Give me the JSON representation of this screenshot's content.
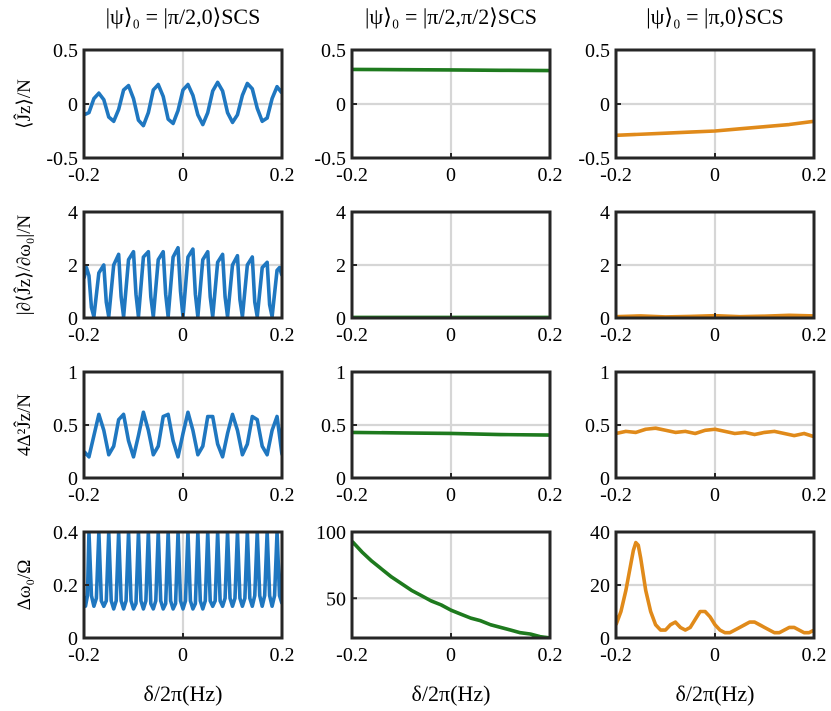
{
  "column_titles": [
    "|ψ⟩₀ = |π/2,0⟩SCS",
    "|ψ⟩₀ = |π/2,π/2⟩SCS",
    "|ψ⟩₀ = |π,0⟩SCS"
  ],
  "row_ylabels": [
    "⟨Ĵz⟩/N",
    "|∂⟨Ĵz⟩/∂ω₀|/N",
    "4Δ²Ĵz/N",
    "Δω₀/Ω"
  ],
  "xlabel": "δ/2π(Hz)",
  "colors": {
    "col0": "#1f77c0",
    "col1": "#1e7a1e",
    "col2": "#e08a1a",
    "grid": "#d6d6d6",
    "axis": "#262626"
  },
  "chart_data": [
    {
      "type": "line",
      "row": 0,
      "col": 0,
      "title": "|ψ⟩₀ = |π/2,0⟩SCS",
      "ylabel": "⟨Ĵz⟩/N",
      "xlim": [
        -0.2,
        0.2
      ],
      "ylim": [
        -0.5,
        0.5
      ],
      "xticks": [
        -0.2,
        0,
        0.2
      ],
      "xtick_labels": [
        "-0.2",
        "0",
        "0.2"
      ],
      "yticks": [
        -0.5,
        0,
        0.5
      ],
      "ytick_labels": [
        "-0.5",
        "0",
        "0.5"
      ],
      "series": [
        {
          "name": "col0",
          "x": [
            -0.2,
            -0.19,
            -0.18,
            -0.17,
            -0.16,
            -0.15,
            -0.14,
            -0.13,
            -0.12,
            -0.11,
            -0.1,
            -0.09,
            -0.08,
            -0.07,
            -0.06,
            -0.05,
            -0.04,
            -0.03,
            -0.02,
            -0.01,
            0,
            0.01,
            0.02,
            0.03,
            0.04,
            0.05,
            0.06,
            0.07,
            0.08,
            0.09,
            0.1,
            0.11,
            0.12,
            0.13,
            0.14,
            0.15,
            0.16,
            0.17,
            0.18,
            0.19,
            0.2
          ],
          "y": [
            -0.1,
            -0.08,
            0.05,
            0.1,
            0.04,
            -0.12,
            -0.16,
            -0.05,
            0.13,
            0.17,
            0.05,
            -0.15,
            -0.2,
            -0.08,
            0.13,
            0.18,
            0.07,
            -0.14,
            -0.18,
            -0.06,
            0.13,
            0.18,
            0.08,
            -0.1,
            -0.19,
            -0.08,
            0.12,
            0.2,
            0.12,
            -0.08,
            -0.17,
            -0.1,
            0.08,
            0.19,
            0.14,
            -0.04,
            -0.16,
            -0.13,
            0.05,
            0.16,
            0.1
          ]
        }
      ]
    },
    {
      "type": "line",
      "row": 0,
      "col": 1,
      "title": "|ψ⟩₀ = |π/2,π/2⟩SCS",
      "ylabel": "",
      "xlim": [
        -0.2,
        0.2
      ],
      "ylim": [
        -0.5,
        0.5
      ],
      "xticks": [
        -0.2,
        0,
        0.2
      ],
      "xtick_labels": [
        "-0.2",
        "0",
        "0.2"
      ],
      "yticks": [
        -0.5,
        0,
        0.5
      ],
      "ytick_labels": [
        "-0.5",
        "0",
        "0.5"
      ],
      "series": [
        {
          "name": "col1",
          "x": [
            -0.2,
            -0.1,
            0,
            0.1,
            0.2
          ],
          "y": [
            0.32,
            0.318,
            0.315,
            0.312,
            0.31
          ]
        }
      ]
    },
    {
      "type": "line",
      "row": 0,
      "col": 2,
      "title": "|ψ⟩₀ = |π,0⟩SCS",
      "ylabel": "",
      "xlim": [
        -0.2,
        0.2
      ],
      "ylim": [
        -0.5,
        0.5
      ],
      "xticks": [
        -0.2,
        0,
        0.2
      ],
      "xtick_labels": [
        "-0.2",
        "0",
        "0.2"
      ],
      "yticks": [
        -0.5,
        0,
        0.5
      ],
      "ytick_labels": [
        "-0.5",
        "0",
        "0.5"
      ],
      "series": [
        {
          "name": "col2",
          "x": [
            -0.2,
            -0.15,
            -0.1,
            -0.05,
            0,
            0.05,
            0.1,
            0.15,
            0.2
          ],
          "y": [
            -0.29,
            -0.28,
            -0.27,
            -0.26,
            -0.25,
            -0.23,
            -0.21,
            -0.19,
            -0.16
          ]
        }
      ]
    },
    {
      "type": "line",
      "row": 1,
      "col": 0,
      "title": "",
      "ylabel": "|∂⟨Ĵz⟩/∂ω₀|/N",
      "xlim": [
        -0.2,
        0.2
      ],
      "ylim": [
        0,
        4
      ],
      "xticks": [
        -0.2,
        0,
        0.2
      ],
      "xtick_labels": [
        "-0.2",
        "0",
        "0.2"
      ],
      "yticks": [
        0,
        2,
        4
      ],
      "ytick_labels": [
        "0",
        "2",
        "4"
      ],
      "series": [
        {
          "name": "col0",
          "x": [
            -0.2,
            -0.195,
            -0.19,
            -0.185,
            -0.18,
            -0.17,
            -0.16,
            -0.155,
            -0.15,
            -0.14,
            -0.13,
            -0.125,
            -0.12,
            -0.11,
            -0.1,
            -0.095,
            -0.09,
            -0.08,
            -0.07,
            -0.065,
            -0.06,
            -0.05,
            -0.04,
            -0.035,
            -0.03,
            -0.02,
            -0.01,
            -0.005,
            0,
            0.01,
            0.02,
            0.025,
            0.03,
            0.04,
            0.05,
            0.055,
            0.06,
            0.07,
            0.08,
            0.085,
            0.09,
            0.1,
            0.11,
            0.115,
            0.12,
            0.13,
            0.14,
            0.145,
            0.15,
            0.16,
            0.17,
            0.175,
            0.18,
            0.19,
            0.195,
            0.2
          ],
          "y": [
            1.5,
            1.9,
            1.6,
            0.4,
            0.05,
            1.7,
            2.0,
            0.6,
            0.05,
            2.0,
            2.4,
            0.8,
            0.05,
            2.2,
            2.5,
            0.9,
            0.05,
            2.3,
            2.5,
            0.8,
            0.05,
            2.2,
            2.5,
            0.9,
            0.05,
            2.3,
            2.65,
            1.0,
            0.05,
            2.3,
            2.6,
            0.9,
            0.05,
            2.2,
            2.5,
            0.8,
            0.05,
            2.1,
            2.4,
            0.8,
            0.05,
            2.0,
            2.35,
            0.7,
            0.05,
            2.0,
            2.3,
            0.6,
            0.05,
            1.9,
            2.1,
            0.5,
            0.05,
            1.8,
            1.9,
            1.6
          ]
        }
      ]
    },
    {
      "type": "line",
      "row": 1,
      "col": 1,
      "title": "",
      "ylabel": "",
      "xlim": [
        -0.2,
        0.2
      ],
      "ylim": [
        0,
        4
      ],
      "xticks": [
        -0.2,
        0,
        0.2
      ],
      "xtick_labels": [
        "-0.2",
        "0",
        "0.2"
      ],
      "yticks": [
        0,
        2,
        4
      ],
      "ytick_labels": [
        "0",
        "2",
        "4"
      ],
      "series": [
        {
          "name": "col1",
          "x": [
            -0.2,
            0,
            0.2
          ],
          "y": [
            0.02,
            0.02,
            0.02
          ]
        }
      ]
    },
    {
      "type": "line",
      "row": 1,
      "col": 2,
      "title": "",
      "ylabel": "",
      "xlim": [
        -0.2,
        0.2
      ],
      "ylim": [
        0,
        4
      ],
      "xticks": [
        -0.2,
        0,
        0.2
      ],
      "xtick_labels": [
        "-0.2",
        "0",
        "0.2"
      ],
      "yticks": [
        0,
        2,
        4
      ],
      "ytick_labels": [
        "0",
        "2",
        "4"
      ],
      "series": [
        {
          "name": "col2",
          "x": [
            -0.2,
            -0.15,
            -0.1,
            -0.05,
            0,
            0.05,
            0.1,
            0.15,
            0.2
          ],
          "y": [
            0.05,
            0.08,
            0.04,
            0.06,
            0.09,
            0.05,
            0.07,
            0.1,
            0.08
          ]
        }
      ]
    },
    {
      "type": "line",
      "row": 2,
      "col": 0,
      "title": "",
      "ylabel": "4Δ²Ĵz/N",
      "xlim": [
        -0.2,
        0.2
      ],
      "ylim": [
        0,
        1
      ],
      "xticks": [
        -0.2,
        0,
        0.2
      ],
      "xtick_labels": [
        "-0.2",
        "0",
        "0.2"
      ],
      "yticks": [
        0,
        0.5,
        1
      ],
      "ytick_labels": [
        "0",
        "0.5",
        "1"
      ],
      "series": [
        {
          "name": "col0",
          "x": [
            -0.2,
            -0.19,
            -0.18,
            -0.17,
            -0.16,
            -0.15,
            -0.14,
            -0.13,
            -0.12,
            -0.11,
            -0.1,
            -0.09,
            -0.08,
            -0.07,
            -0.06,
            -0.05,
            -0.04,
            -0.03,
            -0.02,
            -0.01,
            0,
            0.01,
            0.02,
            0.03,
            0.04,
            0.05,
            0.06,
            0.07,
            0.08,
            0.09,
            0.1,
            0.11,
            0.12,
            0.13,
            0.14,
            0.15,
            0.16,
            0.17,
            0.18,
            0.19,
            0.2
          ],
          "y": [
            0.25,
            0.2,
            0.4,
            0.6,
            0.45,
            0.22,
            0.3,
            0.55,
            0.6,
            0.35,
            0.2,
            0.4,
            0.62,
            0.45,
            0.22,
            0.3,
            0.58,
            0.6,
            0.35,
            0.2,
            0.42,
            0.62,
            0.45,
            0.22,
            0.3,
            0.58,
            0.58,
            0.32,
            0.2,
            0.42,
            0.6,
            0.45,
            0.22,
            0.32,
            0.58,
            0.55,
            0.3,
            0.22,
            0.45,
            0.58,
            0.22
          ]
        }
      ]
    },
    {
      "type": "line",
      "row": 2,
      "col": 1,
      "title": "",
      "ylabel": "",
      "xlim": [
        -0.2,
        0.2
      ],
      "ylim": [
        0,
        1
      ],
      "xticks": [
        -0.2,
        0,
        0.2
      ],
      "xtick_labels": [
        "-0.2",
        "0",
        "0.2"
      ],
      "yticks": [
        0,
        0.5,
        1
      ],
      "ytick_labels": [
        "0",
        "0.5",
        "1"
      ],
      "series": [
        {
          "name": "col1",
          "x": [
            -0.2,
            -0.1,
            0,
            0.1,
            0.2
          ],
          "y": [
            0.43,
            0.425,
            0.42,
            0.41,
            0.405
          ]
        }
      ]
    },
    {
      "type": "line",
      "row": 2,
      "col": 2,
      "title": "",
      "ylabel": "",
      "xlim": [
        -0.2,
        0.2
      ],
      "ylim": [
        0,
        1
      ],
      "xticks": [
        -0.2,
        0,
        0.2
      ],
      "xtick_labels": [
        "-0.2",
        "0",
        "0.2"
      ],
      "yticks": [
        0,
        0.5,
        1
      ],
      "ytick_labels": [
        "0",
        "0.5",
        "1"
      ],
      "series": [
        {
          "name": "col2",
          "x": [
            -0.2,
            -0.18,
            -0.16,
            -0.14,
            -0.12,
            -0.1,
            -0.08,
            -0.06,
            -0.04,
            -0.02,
            0,
            0.02,
            0.04,
            0.06,
            0.08,
            0.1,
            0.12,
            0.14,
            0.16,
            0.18,
            0.2
          ],
          "y": [
            0.42,
            0.44,
            0.43,
            0.46,
            0.47,
            0.45,
            0.43,
            0.44,
            0.42,
            0.45,
            0.46,
            0.44,
            0.42,
            0.43,
            0.41,
            0.43,
            0.44,
            0.42,
            0.4,
            0.42,
            0.39
          ]
        }
      ]
    },
    {
      "type": "line",
      "row": 3,
      "col": 0,
      "title": "",
      "ylabel": "Δω₀/Ω",
      "xlim": [
        -0.2,
        0.2
      ],
      "ylim": [
        0,
        0.4
      ],
      "xticks": [
        -0.2,
        0,
        0.2
      ],
      "xtick_labels": [
        "-0.2",
        "0",
        "0.2"
      ],
      "yticks": [
        0,
        0.2,
        0.4
      ],
      "ytick_labels": [
        "0",
        "0.2",
        "0.4"
      ],
      "series": [
        {
          "name": "col0",
          "x": [
            -0.2,
            -0.197,
            -0.193,
            -0.19,
            -0.185,
            -0.18,
            -0.175,
            -0.17,
            -0.165,
            -0.16,
            -0.155,
            -0.15,
            -0.145,
            -0.14,
            -0.135,
            -0.13,
            -0.125,
            -0.12,
            -0.115,
            -0.11,
            -0.105,
            -0.1,
            -0.095,
            -0.09,
            -0.085,
            -0.08,
            -0.075,
            -0.07,
            -0.065,
            -0.06,
            -0.055,
            -0.05,
            -0.045,
            -0.04,
            -0.035,
            -0.03,
            -0.025,
            -0.02,
            -0.015,
            -0.01,
            -0.005,
            0,
            0.005,
            0.01,
            0.015,
            0.02,
            0.025,
            0.03,
            0.035,
            0.04,
            0.045,
            0.05,
            0.055,
            0.06,
            0.065,
            0.07,
            0.075,
            0.08,
            0.085,
            0.09,
            0.095,
            0.1,
            0.105,
            0.11,
            0.115,
            0.12,
            0.125,
            0.13,
            0.135,
            0.14,
            0.145,
            0.15,
            0.155,
            0.16,
            0.165,
            0.17,
            0.175,
            0.18,
            0.185,
            0.19,
            0.195,
            0.2
          ],
          "y": [
            0.14,
            0.12,
            0.16,
            0.4,
            0.16,
            0.12,
            0.15,
            0.4,
            0.14,
            0.12,
            0.14,
            0.4,
            0.14,
            0.11,
            0.14,
            0.4,
            0.14,
            0.11,
            0.14,
            0.4,
            0.14,
            0.11,
            0.13,
            0.4,
            0.14,
            0.11,
            0.14,
            0.4,
            0.13,
            0.11,
            0.14,
            0.4,
            0.14,
            0.11,
            0.13,
            0.4,
            0.14,
            0.11,
            0.13,
            0.4,
            0.14,
            0.11,
            0.14,
            0.4,
            0.14,
            0.11,
            0.13,
            0.4,
            0.14,
            0.11,
            0.14,
            0.4,
            0.14,
            0.12,
            0.14,
            0.4,
            0.14,
            0.12,
            0.15,
            0.4,
            0.15,
            0.12,
            0.15,
            0.4,
            0.15,
            0.12,
            0.15,
            0.4,
            0.15,
            0.12,
            0.16,
            0.4,
            0.16,
            0.12,
            0.16,
            0.4,
            0.16,
            0.12,
            0.16,
            0.4,
            0.16,
            0.13
          ]
        }
      ]
    },
    {
      "type": "line",
      "row": 3,
      "col": 1,
      "title": "",
      "ylabel": "",
      "xlim": [
        -0.2,
        0.2
      ],
      "ylim": [
        20,
        100
      ],
      "xticks": [
        -0.2,
        0,
        0.2
      ],
      "xtick_labels": [
        "-0.2",
        "0",
        "0.2"
      ],
      "yticks": [
        50,
        100
      ],
      "ytick_labels": [
        "50",
        "100"
      ],
      "series": [
        {
          "name": "col1",
          "x": [
            -0.2,
            -0.18,
            -0.16,
            -0.14,
            -0.12,
            -0.1,
            -0.08,
            -0.06,
            -0.04,
            -0.02,
            0,
            0.02,
            0.04,
            0.06,
            0.08,
            0.1,
            0.12,
            0.14,
            0.16,
            0.18,
            0.2
          ],
          "y": [
            93,
            85,
            78,
            72,
            66,
            61,
            56,
            52,
            48,
            45,
            41,
            38,
            35,
            33,
            30,
            28,
            26,
            24,
            23,
            21,
            20
          ]
        }
      ]
    },
    {
      "type": "line",
      "row": 3,
      "col": 2,
      "title": "",
      "ylabel": "",
      "xlim": [
        -0.2,
        0.2
      ],
      "ylim": [
        0,
        40
      ],
      "xticks": [
        -0.2,
        0,
        0.2
      ],
      "xtick_labels": [
        "-0.2",
        "0",
        "0.2"
      ],
      "yticks": [
        0,
        20,
        40
      ],
      "ytick_labels": [
        "0",
        "20",
        "40"
      ],
      "series": [
        {
          "name": "col2",
          "x": [
            -0.2,
            -0.19,
            -0.18,
            -0.17,
            -0.165,
            -0.16,
            -0.155,
            -0.15,
            -0.145,
            -0.14,
            -0.13,
            -0.12,
            -0.11,
            -0.1,
            -0.09,
            -0.08,
            -0.07,
            -0.06,
            -0.05,
            -0.04,
            -0.03,
            -0.02,
            -0.01,
            0,
            0.01,
            0.02,
            0.03,
            0.04,
            0.05,
            0.06,
            0.07,
            0.08,
            0.09,
            0.1,
            0.11,
            0.12,
            0.13,
            0.14,
            0.15,
            0.16,
            0.17,
            0.18,
            0.19,
            0.2
          ],
          "y": [
            5,
            10,
            18,
            28,
            33,
            36,
            35,
            30,
            24,
            18,
            10,
            5,
            3,
            3,
            5,
            6,
            4,
            3,
            4,
            7,
            10,
            10,
            8,
            5,
            3,
            2,
            2,
            3,
            4,
            5,
            6,
            6,
            5,
            4,
            3,
            2,
            2,
            3,
            4,
            4,
            3,
            2,
            2,
            3
          ]
        }
      ]
    }
  ]
}
